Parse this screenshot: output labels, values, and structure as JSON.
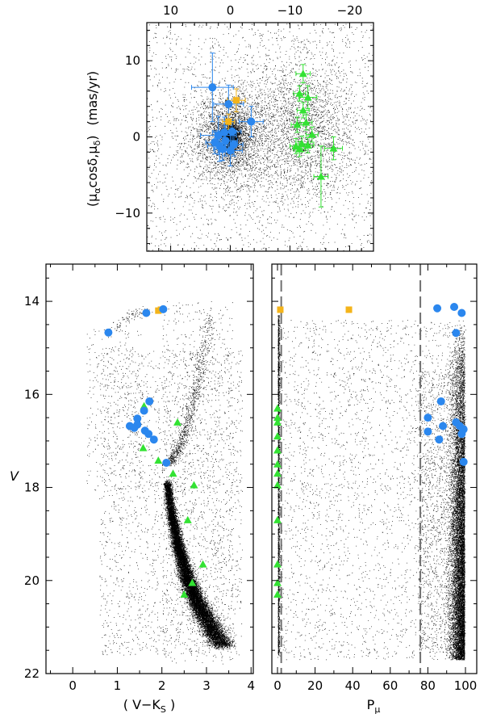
{
  "chart_data": [
    {
      "id": "pm",
      "type": "scatter",
      "ylabel_parts": [
        "(μ",
        "α",
        "cosδ,μ",
        "δ",
        ")",
        "(mas/yr)"
      ],
      "top_ticks": [
        "10",
        "0",
        "−10",
        "−20"
      ],
      "top_tick_values": [
        10,
        0,
        -10,
        -20
      ],
      "left_ticks": [
        "10",
        "0",
        "−10"
      ],
      "left_tick_values": [
        10,
        0,
        -10
      ],
      "xlim": [
        14,
        -24
      ],
      "ylim": [
        -15,
        15
      ],
      "field_clusters": [
        {
          "x": 0,
          "y": 0,
          "sx": 3.0,
          "sy": 3.0,
          "n": 2600
        },
        {
          "x": 0,
          "y": 0,
          "sx": 0.9,
          "sy": 0.9,
          "n": 1800
        },
        {
          "x": -12,
          "y": 1,
          "sx": 4.5,
          "sy": 4.5,
          "n": 2200
        },
        {
          "x": -5,
          "y": 0,
          "sx": 14,
          "sy": 7,
          "n": 1200
        }
      ],
      "blue_circles": [
        {
          "x": 3.0,
          "y": 6.5,
          "ex": 3.5,
          "ey": 4.5
        },
        {
          "x": 0.3,
          "y": 4.3,
          "ex": 2.5,
          "ey": 2.5
        },
        {
          "x": -3.5,
          "y": 2.0,
          "ex": 2.0,
          "ey": 2.0
        },
        {
          "x": 2.0,
          "y": 0.2,
          "ex": 3.0,
          "ey": 2.5
        },
        {
          "x": 1.0,
          "y": 0.6,
          "ex": 2.0,
          "ey": 2.0
        },
        {
          "x": -0.3,
          "y": 0.7,
          "ex": 1.5,
          "ey": 1.5
        },
        {
          "x": 0.8,
          "y": -0.5,
          "ex": 2.0,
          "ey": 2.0
        },
        {
          "x": 1.8,
          "y": -1.2,
          "ex": 2.0,
          "ey": 2.0
        },
        {
          "x": 0.0,
          "y": -1.8,
          "ex": 2.0,
          "ey": 2.0
        },
        {
          "x": -0.6,
          "y": -1.0,
          "ex": 1.5,
          "ey": 1.5
        },
        {
          "x": 2.6,
          "y": -0.7,
          "ex": 1.5,
          "ey": 1.5
        },
        {
          "x": 1.3,
          "y": -1.6,
          "ex": 1.5,
          "ey": 1.5
        }
      ],
      "orange_squares": [
        {
          "x": -1.0,
          "y": 4.8,
          "ex": 1.5,
          "ey": 1.5
        },
        {
          "x": 0.3,
          "y": 2.0,
          "ex": 1.0,
          "ey": 1.0
        }
      ],
      "green_triangles": [
        {
          "x": -12.2,
          "y": 8.3,
          "ex": 1.2,
          "ey": 1.2
        },
        {
          "x": -13.0,
          "y": 5.2,
          "ex": 1.5,
          "ey": 1.5
        },
        {
          "x": -11.6,
          "y": 5.7,
          "ex": 1.0,
          "ey": 1.0
        },
        {
          "x": -12.2,
          "y": 3.5,
          "ex": 1.0,
          "ey": 1.0
        },
        {
          "x": -12.7,
          "y": 1.9,
          "ex": 1.0,
          "ey": 1.0
        },
        {
          "x": -11.2,
          "y": 1.6,
          "ex": 1.0,
          "ey": 1.0
        },
        {
          "x": -13.7,
          "y": 0.3,
          "ex": 1.0,
          "ey": 1.0
        },
        {
          "x": -12.0,
          "y": -0.9,
          "ex": 1.0,
          "ey": 1.0
        },
        {
          "x": -13.0,
          "y": -1.1,
          "ex": 1.0,
          "ey": 1.0
        },
        {
          "x": -11.0,
          "y": -1.2,
          "ex": 1.0,
          "ey": 1.0
        },
        {
          "x": -11.6,
          "y": -1.6,
          "ex": 1.0,
          "ey": 1.0
        },
        {
          "x": -17.3,
          "y": -1.5,
          "ex": 1.5,
          "ey": 1.5
        },
        {
          "x": -15.2,
          "y": -5.2,
          "ex": 1.2,
          "ey": 4.0
        }
      ]
    },
    {
      "id": "cmd",
      "type": "scatter",
      "ylabel": "V",
      "xlabel_parts": [
        "( V−K",
        "S",
        " )"
      ],
      "xticks": [
        "0",
        "1",
        "2",
        "3",
        "4"
      ],
      "xtick_values": [
        0,
        1,
        2,
        3,
        4
      ],
      "yticks": [
        "14",
        "16",
        "18",
        "20",
        "22"
      ],
      "ytick_values": [
        14,
        16,
        18,
        20,
        22
      ],
      "xlim": [
        -0.6,
        4.05
      ],
      "ylim": [
        22,
        13.2
      ],
      "ridge": [
        {
          "x": 2.12,
          "y": 17.9,
          "w": 0.04,
          "n": 900
        },
        {
          "x": 2.2,
          "y": 18.5,
          "w": 0.05,
          "n": 2200
        },
        {
          "x": 2.35,
          "y": 19.2,
          "w": 0.06,
          "n": 3200
        },
        {
          "x": 2.55,
          "y": 19.9,
          "w": 0.08,
          "n": 3400
        },
        {
          "x": 2.8,
          "y": 20.5,
          "w": 0.1,
          "n": 3000
        },
        {
          "x": 3.1,
          "y": 21.0,
          "w": 0.12,
          "n": 2400
        },
        {
          "x": 3.35,
          "y": 21.4,
          "w": 0.13,
          "n": 1500
        }
      ],
      "rgb": [
        {
          "x": 2.18,
          "y": 17.5,
          "w": 0.05,
          "n": 260
        },
        {
          "x": 2.4,
          "y": 17.1,
          "w": 0.06,
          "n": 220
        },
        {
          "x": 2.6,
          "y": 16.5,
          "w": 0.07,
          "n": 180
        },
        {
          "x": 2.78,
          "y": 15.8,
          "w": 0.07,
          "n": 150
        },
        {
          "x": 2.95,
          "y": 15.0,
          "w": 0.08,
          "n": 120
        },
        {
          "x": 3.1,
          "y": 14.3,
          "w": 0.08,
          "n": 80
        }
      ],
      "hb": [
        {
          "x": 0.95,
          "y": 14.6,
          "w": 0.1,
          "n": 40
        },
        {
          "x": 1.3,
          "y": 14.3,
          "w": 0.1,
          "n": 60
        },
        {
          "x": 1.65,
          "y": 14.2,
          "w": 0.08,
          "n": 50
        }
      ],
      "blue_circles": [
        {
          "x": 2.03,
          "y": 14.17
        },
        {
          "x": 1.65,
          "y": 14.25
        },
        {
          "x": 0.8,
          "y": 14.67
        },
        {
          "x": 1.72,
          "y": 16.15
        },
        {
          "x": 1.6,
          "y": 16.35
        },
        {
          "x": 1.45,
          "y": 16.52
        },
        {
          "x": 1.45,
          "y": 16.65
        },
        {
          "x": 1.28,
          "y": 16.68
        },
        {
          "x": 1.38,
          "y": 16.72
        },
        {
          "x": 1.62,
          "y": 16.78
        },
        {
          "x": 1.7,
          "y": 16.85
        },
        {
          "x": 1.82,
          "y": 16.97
        },
        {
          "x": 2.1,
          "y": 17.47
        }
      ],
      "orange_squares": [
        {
          "x": 1.92,
          "y": 14.2
        },
        {
          "x": 1.98,
          "y": 14.18
        }
      ],
      "green_triangles": [
        {
          "x": 1.6,
          "y": 16.25
        },
        {
          "x": 2.35,
          "y": 16.6
        },
        {
          "x": 1.58,
          "y": 17.15
        },
        {
          "x": 1.92,
          "y": 17.42
        },
        {
          "x": 2.25,
          "y": 17.7
        },
        {
          "x": 2.72,
          "y": 17.95
        },
        {
          "x": 2.58,
          "y": 18.7
        },
        {
          "x": 2.92,
          "y": 19.65
        },
        {
          "x": 2.68,
          "y": 20.05
        },
        {
          "x": 2.5,
          "y": 20.3
        }
      ]
    },
    {
      "id": "prob",
      "type": "scatter",
      "xlabel_parts": [
        "P",
        "μ"
      ],
      "xticks": [
        "0",
        "20",
        "40",
        "60",
        "80",
        "100"
      ],
      "xtick_values": [
        0,
        20,
        40,
        60,
        80,
        100
      ],
      "xlim": [
        -3,
        106
      ],
      "ylim": [
        22,
        13.2
      ],
      "dashed_lines_x": [
        2,
        76
      ],
      "blue_circles": [
        {
          "x": 85,
          "y": 14.15
        },
        {
          "x": 94,
          "y": 14.12
        },
        {
          "x": 98,
          "y": 14.25
        },
        {
          "x": 95,
          "y": 14.68
        },
        {
          "x": 87,
          "y": 16.15
        },
        {
          "x": 80,
          "y": 16.5
        },
        {
          "x": 95,
          "y": 16.6
        },
        {
          "x": 88,
          "y": 16.68
        },
        {
          "x": 97,
          "y": 16.68
        },
        {
          "x": 99,
          "y": 16.75
        },
        {
          "x": 80,
          "y": 16.8
        },
        {
          "x": 98,
          "y": 16.85
        },
        {
          "x": 86,
          "y": 16.97
        },
        {
          "x": 99,
          "y": 17.45
        }
      ],
      "orange_squares": [
        {
          "x": 1.5,
          "y": 14.18
        },
        {
          "x": 38,
          "y": 14.18
        }
      ],
      "green_triangles": [
        {
          "x": 0,
          "y": 16.3
        },
        {
          "x": 0,
          "y": 16.5
        },
        {
          "x": 0,
          "y": 16.6
        },
        {
          "x": 0,
          "y": 16.9
        },
        {
          "x": 0,
          "y": 17.2
        },
        {
          "x": 0,
          "y": 17.5
        },
        {
          "x": 0,
          "y": 17.7
        },
        {
          "x": 0,
          "y": 17.95
        },
        {
          "x": 0,
          "y": 18.7
        },
        {
          "x": 0,
          "y": 19.65
        },
        {
          "x": 0,
          "y": 20.05
        },
        {
          "x": 0,
          "y": 20.3
        }
      ]
    }
  ],
  "colors": {
    "blue": "#2b87ee",
    "green": "#33e233",
    "orange": "#f4b41a",
    "field": "#000000",
    "dash": "#707070"
  }
}
